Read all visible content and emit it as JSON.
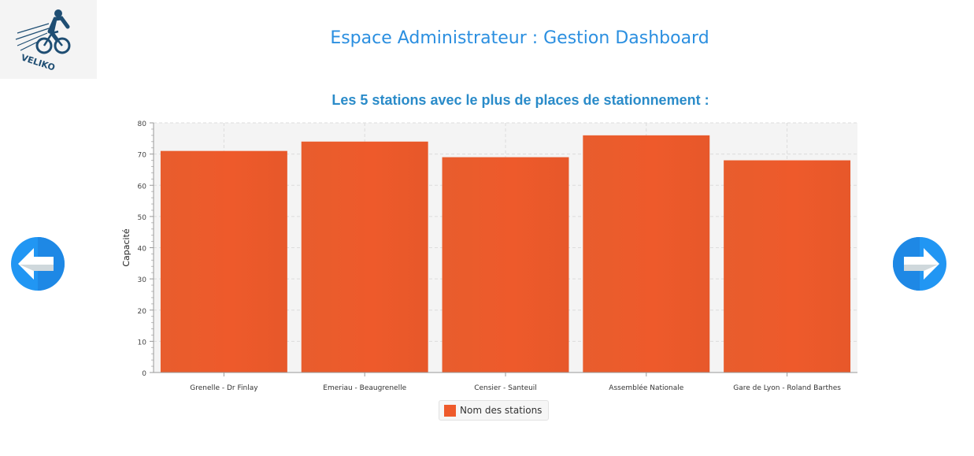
{
  "header": {
    "logo_text": "VELIKO",
    "title": "Espace Administrateur : Gestion Dashboard"
  },
  "navigation": {
    "prev_icon": "arrow-left-icon",
    "next_icon": "arrow-right-icon"
  },
  "colors": {
    "title": "#2b8fe0",
    "chart_title": "#2a8bc9",
    "bar": "#ee5a2b",
    "nav_button": "#2196f3"
  },
  "chart_data": {
    "type": "bar",
    "title": "Les 5 stations avec le plus de places de stationnement :",
    "xlabel": "",
    "ylabel": "Capacité",
    "categories": [
      "Grenelle - Dr Finlay",
      "Emeriau - Beaugrenelle",
      "Censier - Santeuil",
      "Assemblée Nationale",
      "Gare de Lyon - Roland Barthes"
    ],
    "series": [
      {
        "name": "Nom des stations",
        "values": [
          71,
          74,
          69,
          76,
          68
        ]
      }
    ],
    "ylim": [
      0,
      80
    ],
    "yticks": [
      0,
      10,
      20,
      30,
      40,
      50,
      60,
      70,
      80
    ],
    "grid": true,
    "legend": "bottom-center"
  }
}
